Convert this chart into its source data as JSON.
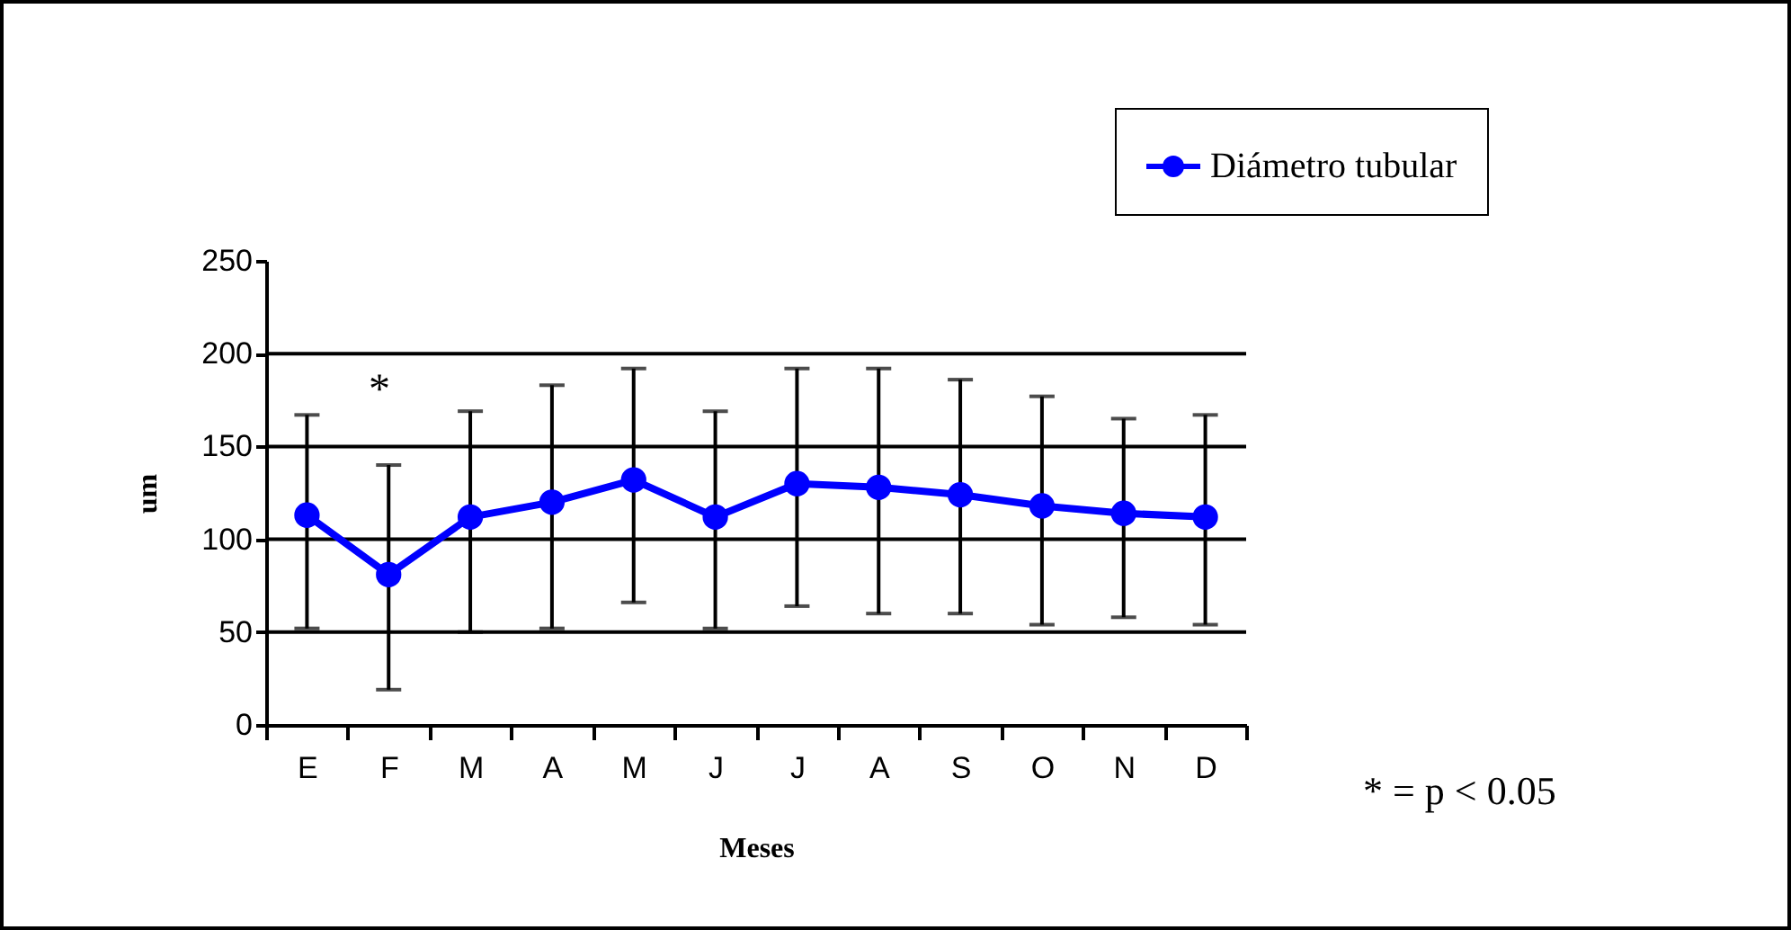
{
  "chart_data": {
    "type": "line",
    "xlabel": "Meses",
    "ylabel": "um",
    "categories": [
      "E",
      "F",
      "M",
      "A",
      "M",
      "J",
      "J",
      "A",
      "S",
      "O",
      "N",
      "D"
    ],
    "series": [
      {
        "name": "Diámetro tubular",
        "color": "#0000ff",
        "values": [
          113,
          81,
          112,
          120,
          132,
          112,
          130,
          128,
          124,
          118,
          114,
          112
        ],
        "errors": [
          [
            52,
            167
          ],
          [
            19,
            140
          ],
          [
            50,
            169
          ],
          [
            52,
            183
          ],
          [
            66,
            192
          ],
          [
            52,
            169
          ],
          [
            64,
            192
          ],
          [
            60,
            192
          ],
          [
            60,
            186
          ],
          [
            54,
            177
          ],
          [
            58,
            165
          ],
          [
            54,
            167
          ]
        ]
      }
    ],
    "ylim": [
      0,
      250
    ],
    "yticks": [
      0,
      50,
      100,
      150,
      200,
      250
    ],
    "grid": "y",
    "legend": "top right",
    "marker": "circle",
    "line_style": "solid",
    "annotations": [
      "*",
      "* = p < 0.05"
    ]
  }
}
